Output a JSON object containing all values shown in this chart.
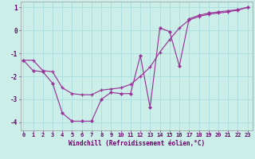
{
  "xlabel": "Windchill (Refroidissement éolien,°C)",
  "x": [
    0,
    1,
    2,
    3,
    4,
    5,
    6,
    7,
    8,
    9,
    10,
    11,
    12,
    13,
    14,
    15,
    16,
    17,
    18,
    19,
    20,
    21,
    22,
    23
  ],
  "zigzag": [
    -1.3,
    -1.75,
    -1.8,
    -2.3,
    -3.6,
    -3.95,
    -3.95,
    -3.95,
    -3.0,
    -2.7,
    -2.75,
    -2.75,
    -1.1,
    -3.35,
    0.1,
    -0.05,
    -1.55,
    0.5,
    0.65,
    0.75,
    0.8,
    0.85,
    0.9,
    1.0
  ],
  "straight": [
    -1.3,
    -1.3,
    -1.75,
    -1.8,
    -2.5,
    -2.75,
    -2.8,
    -2.8,
    -2.6,
    -2.55,
    -2.5,
    -2.35,
    -2.0,
    -1.6,
    -0.95,
    -0.4,
    0.1,
    0.45,
    0.6,
    0.7,
    0.75,
    0.8,
    0.88,
    1.0
  ],
  "ylim": [
    -4.35,
    1.25
  ],
  "xlim": [
    -0.3,
    23.5
  ],
  "yticks": [
    1,
    0,
    -1,
    -2,
    -3,
    -4
  ],
  "color": "#993399",
  "bg_color": "#cceee8",
  "grid_color": "#aadddd",
  "font_color": "#660066",
  "tick_fontsize": 5.0,
  "label_fontsize": 5.5
}
